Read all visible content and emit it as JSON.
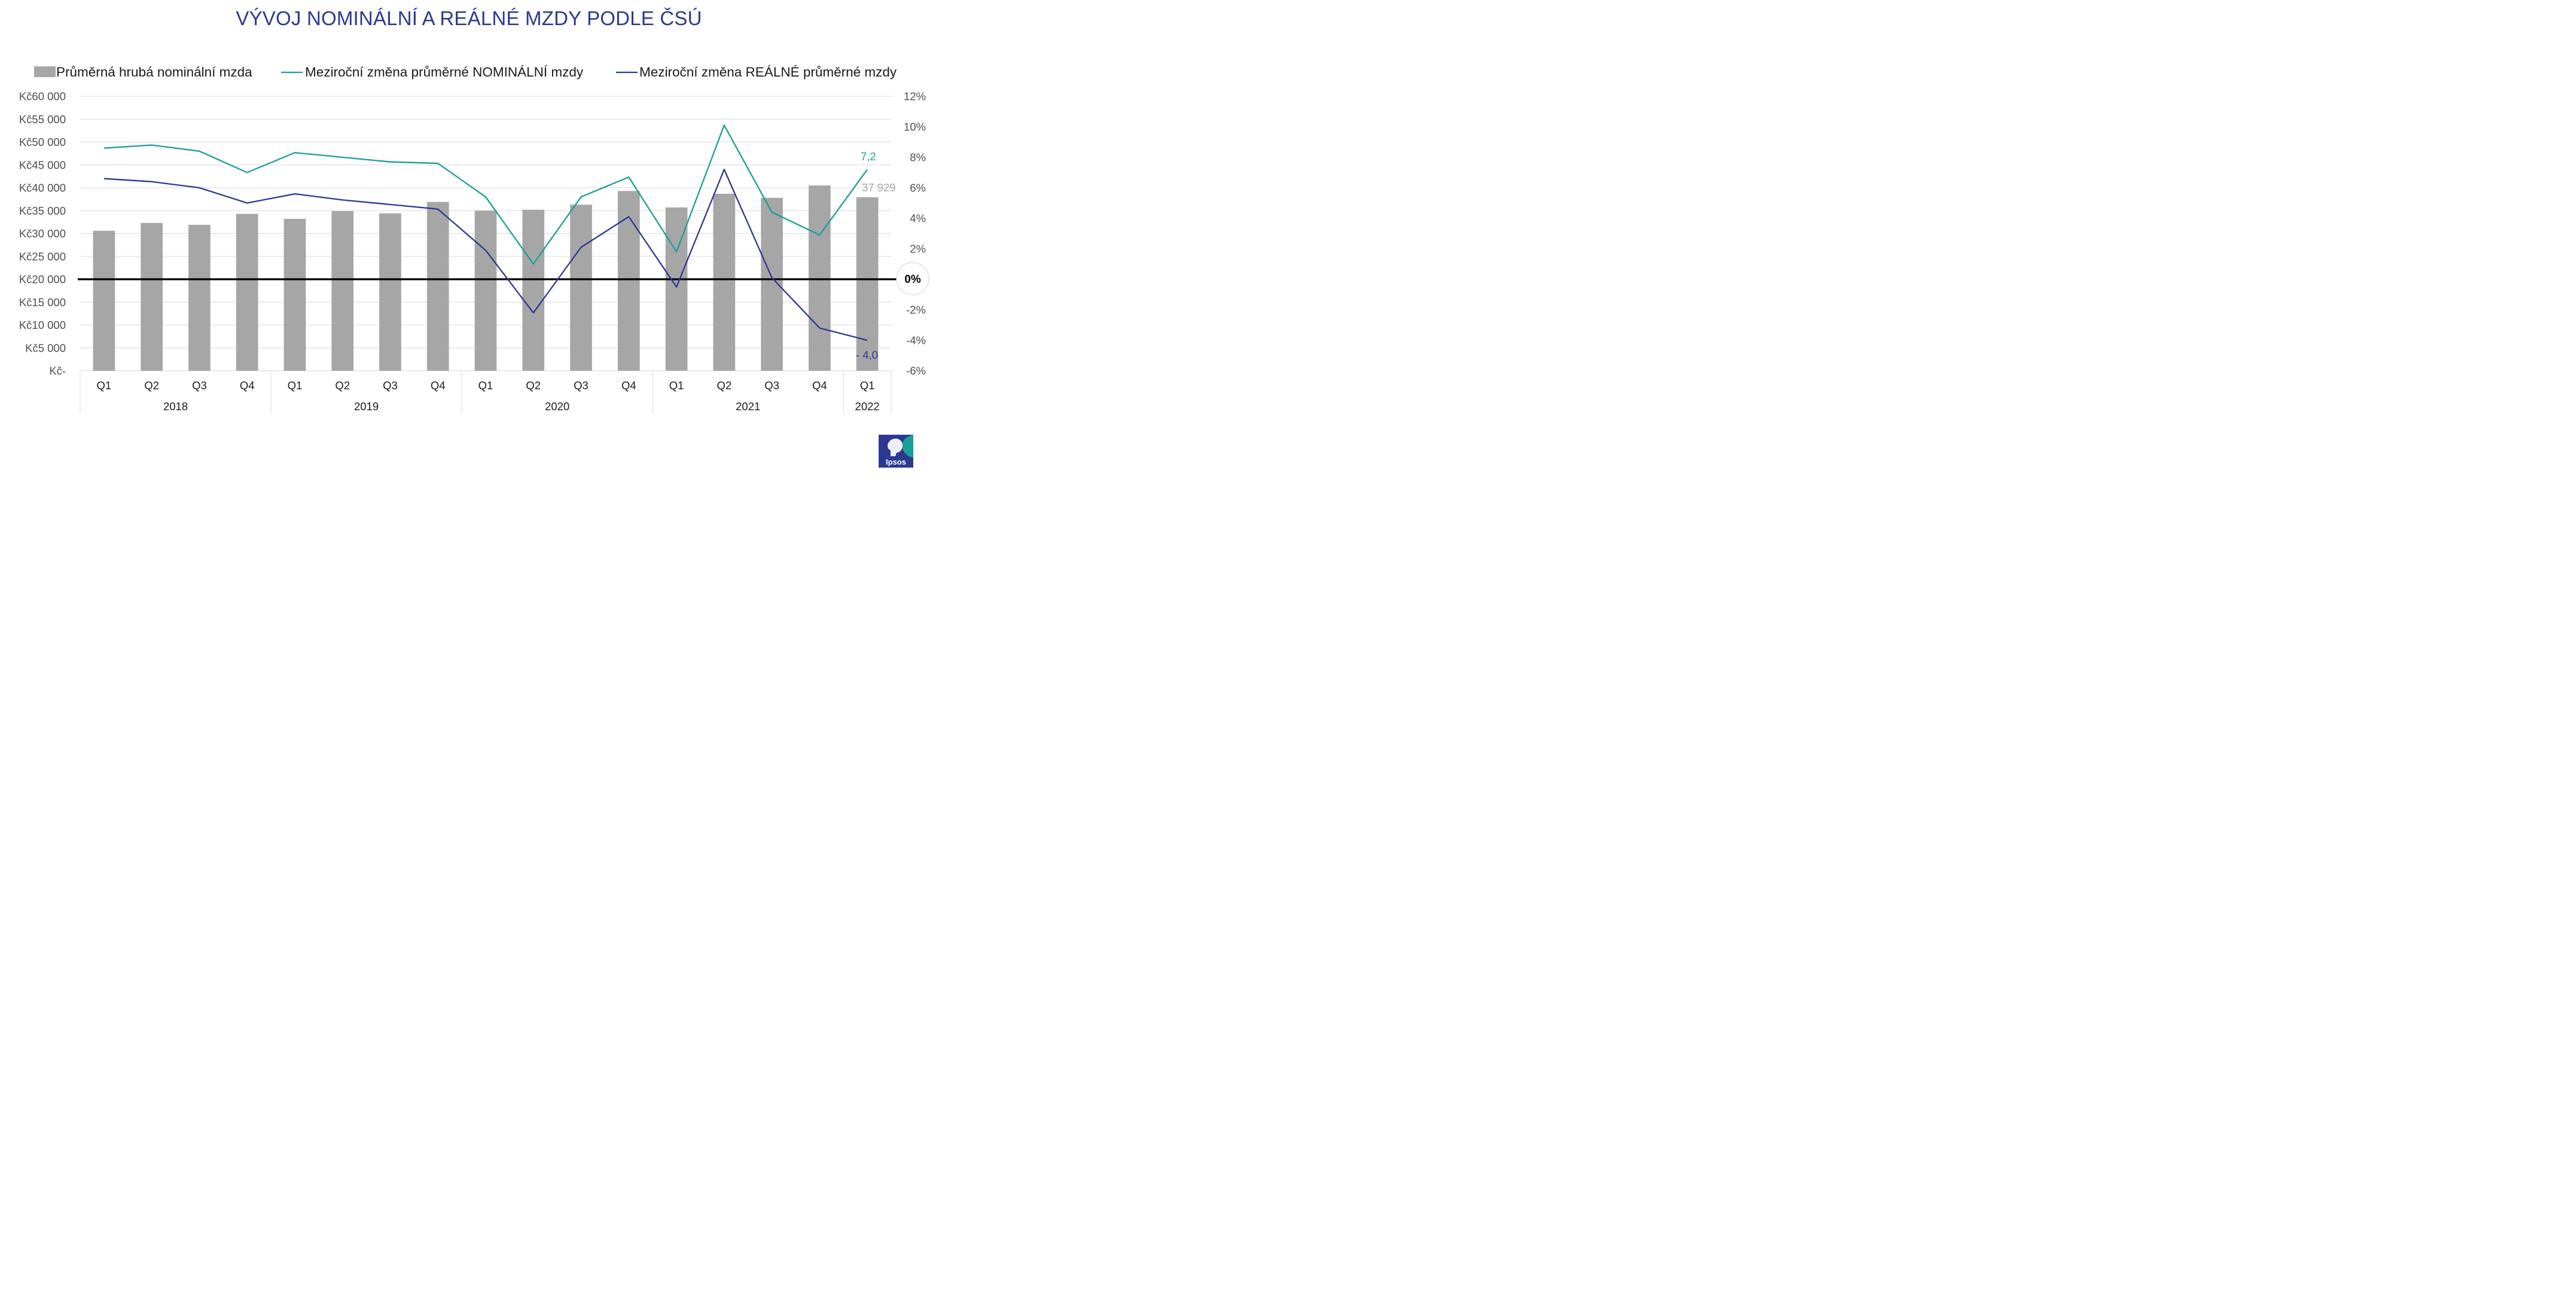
{
  "title": "VÝVOJ NOMINÁLNÍ A REÁLNÉ MZDY PODLE ČSÚ",
  "colors": {
    "title": "#2B3990",
    "bars": "#A6A6A6",
    "nominal": "#1A9E96",
    "real": "#2B3990",
    "zero_line": "#000000",
    "grid": "#D9D9D9"
  },
  "logo": {
    "text": "Ipsos",
    "icon": "ipsos-logo-icon"
  },
  "chart_data": {
    "type": "bar",
    "categories": [
      "Q1",
      "Q2",
      "Q3",
      "Q4",
      "Q1",
      "Q2",
      "Q3",
      "Q4",
      "Q1",
      "Q2",
      "Q3",
      "Q4",
      "Q1",
      "Q2",
      "Q3",
      "Q4",
      "Q1"
    ],
    "years": [
      {
        "label": "2018",
        "quarters": 4
      },
      {
        "label": "2019",
        "quarters": 4
      },
      {
        "label": "2020",
        "quarters": 4
      },
      {
        "label": "2021",
        "quarters": 4
      },
      {
        "label": "2022",
        "quarters": 1
      }
    ],
    "legend": [
      "Průměrná hrubá nominální mzda",
      "Meziroční změna průměrné NOMINÁLNÍ mzdy",
      "Meziroční změna REÁLNÉ průměrné mzdy"
    ],
    "series": [
      {
        "name": "Průměrná hrubá nominální mzda",
        "type": "bar",
        "axis": "left",
        "values": [
          30600,
          32300,
          31900,
          34300,
          33200,
          34900,
          34400,
          36900,
          35000,
          35200,
          36300,
          39300,
          35700,
          38700,
          37800,
          40500,
          37929
        ]
      },
      {
        "name": "Meziroční změna průměrné NOMINÁLNÍ mzdy",
        "type": "line",
        "axis": "right",
        "values": [
          8.6,
          8.8,
          8.4,
          7.0,
          8.3,
          8.0,
          7.7,
          7.6,
          5.4,
          1.0,
          5.4,
          6.7,
          1.8,
          10.1,
          4.4,
          2.9,
          7.2
        ]
      },
      {
        "name": "Meziroční změna REÁLNÉ průměrné mzdy",
        "type": "line",
        "axis": "right",
        "values": [
          6.6,
          6.4,
          6.0,
          5.0,
          5.6,
          5.2,
          4.9,
          4.6,
          1.9,
          -2.2,
          2.1,
          4.1,
          -0.5,
          7.2,
          0.1,
          -3.2,
          -4.0
        ]
      }
    ],
    "y_left": {
      "ticks": [
        "Kč60 000",
        "Kč55 000",
        "Kč50 000",
        "Kč45 000",
        "Kč40 000",
        "Kč35 000",
        "Kč30 000",
        "Kč25 000",
        "Kč20 000",
        "Kč15 000",
        "Kč10 000",
        "Kč5 000",
        "Kč-"
      ],
      "ylim": [
        0,
        60000
      ]
    },
    "y_right": {
      "ticks": [
        "12%",
        "10%",
        "8%",
        "6%",
        "4%",
        "2%",
        "",
        "-2%",
        "-4%",
        "-6%"
      ],
      "zero_label": "0%",
      "ylim": [
        -6,
        12
      ]
    },
    "annotations": {
      "last_bar": "37 929",
      "last_nominal": "7,2",
      "last_real": "- 4,0"
    },
    "grid": true,
    "legend_position": "top"
  }
}
